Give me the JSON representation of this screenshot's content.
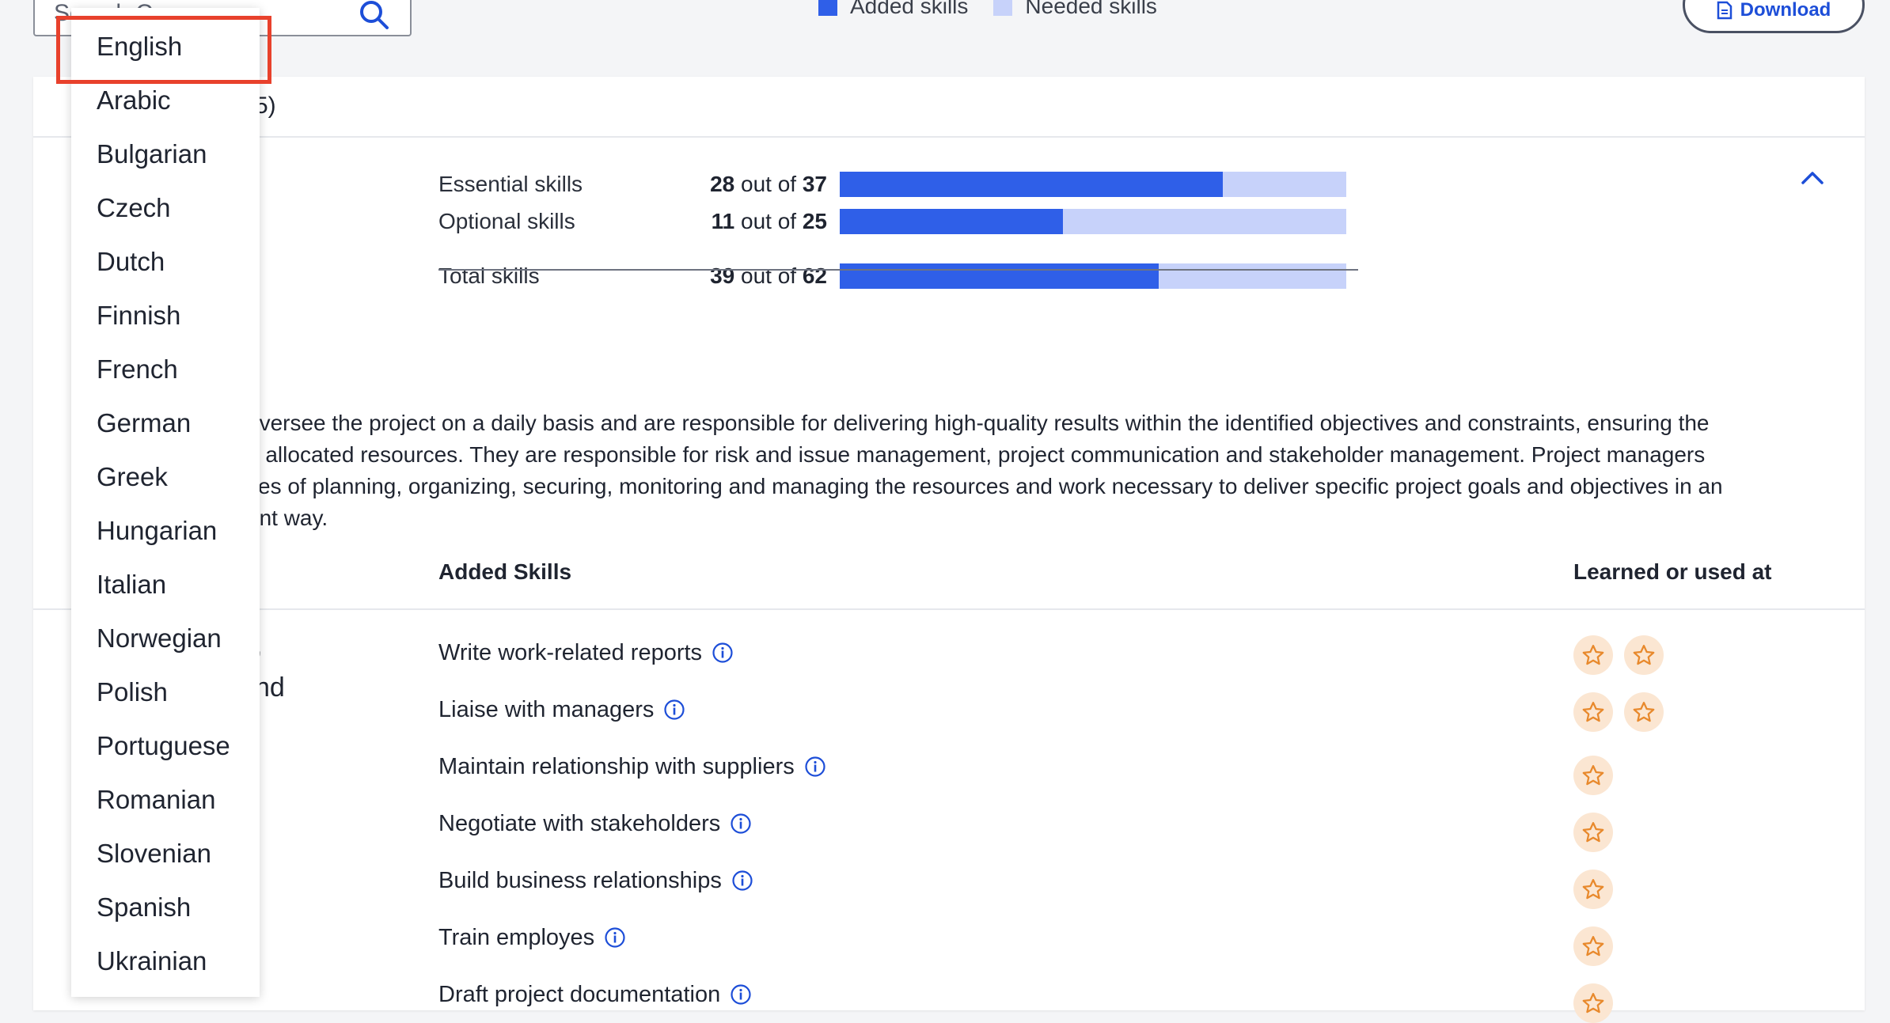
{
  "search": {
    "placeholder": "Search Careers"
  },
  "legend": {
    "added": {
      "label": "Added skills",
      "color": "#2f5fe8"
    },
    "needed": {
      "label": "Needed skills",
      "color": "#c7d2fa"
    }
  },
  "download": {
    "label": "Download",
    "icon": "document-icon"
  },
  "card": {
    "header_count_fragment": "5)"
  },
  "skill_bars": [
    {
      "label": "Essential skills",
      "have": "28",
      "sep": " out of ",
      "total": "37",
      "fraction": 0.757
    },
    {
      "label": "Optional skills",
      "have": "11",
      "sep": " out of ",
      "total": "25",
      "fraction": 0.44
    },
    {
      "label": "Total skills",
      "have": "39",
      "sep": " out of ",
      "total": "62",
      "fraction": 0.629
    }
  ],
  "description_lines": [
    "oversee the project on a daily basis and are responsible for delivering high-quality results within the identified objectives and constraints, ensuring the",
    "e allocated resources. They are responsible for risk and issue management, project communication and stakeholder management. Project managers",
    "ties of planning, organizing, securing, monitoring and managing the resources and work necessary to deliver specific project goals and objectives in an",
    "ent way."
  ],
  "table": {
    "added_skills_header": "Added Skills",
    "learned_header": "Learned or used at",
    "left_fragments": [
      ",",
      "nd"
    ]
  },
  "added_skills": [
    {
      "name": "Write work-related reports",
      "stars": 2
    },
    {
      "name": "Liaise with managers",
      "stars": 2
    },
    {
      "name": "Maintain relationship with suppliers",
      "stars": 1
    },
    {
      "name": "Negotiate with stakeholders",
      "stars": 1
    },
    {
      "name": "Build business relationships",
      "stars": 1
    },
    {
      "name": "Train employes",
      "stars": 1
    },
    {
      "name": "Draft project documentation",
      "stars": 1
    }
  ],
  "language_dropdown": {
    "selected": "English",
    "options": [
      "English",
      "Arabic",
      "Bulgarian",
      "Czech",
      "Dutch",
      "Finnish",
      "French",
      "German",
      "Greek",
      "Hungarian",
      "Italian",
      "Norwegian",
      "Polish",
      "Portuguese",
      "Romanian",
      "Slovenian",
      "Spanish",
      "Ukrainian"
    ]
  },
  "colors": {
    "accent": "#2f5fe8",
    "highlight": "#e8412c",
    "star": "#e8892c",
    "star_bg": "#fbe6d2"
  }
}
